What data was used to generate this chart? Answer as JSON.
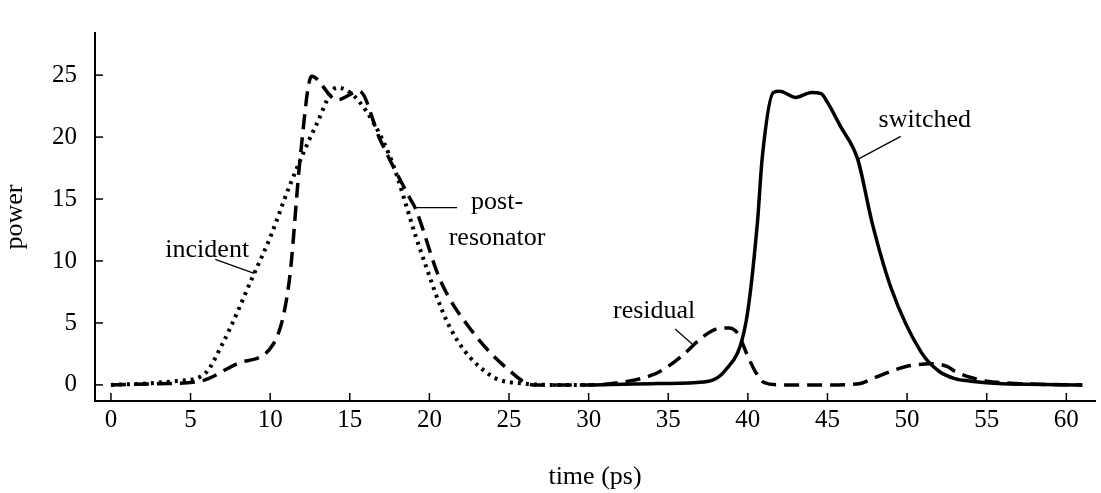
{
  "chart_data": {
    "type": "line",
    "xlabel": "time (ps)",
    "ylabel": "power",
    "xlim": [
      -1,
      61.8
    ],
    "ylim": [
      -1.3,
      28.4
    ],
    "xticks": [
      0,
      5,
      10,
      15,
      20,
      25,
      30,
      35,
      40,
      45,
      50,
      55,
      60
    ],
    "yticks": [
      0,
      5,
      10,
      15,
      20,
      25
    ],
    "legend": false,
    "series": [
      {
        "type": "line",
        "color": "#000000",
        "line_style": "dotted",
        "x": [
          0,
          2,
          4,
          5.8,
          7,
          9,
          10,
          11.2,
          12.9,
          14.2,
          15.5,
          17.5,
          19.4,
          21.3,
          23.8,
          26,
          28,
          30
        ],
        "values": [
          0,
          0.1,
          0.3,
          0.8,
          3.3,
          9,
          11.9,
          16,
          21,
          24,
          23,
          18.5,
          11,
          4.6,
          0.8,
          0.1,
          0,
          0
        ]
      },
      {
        "type": "line",
        "color": "#000000",
        "line_style": "dashed",
        "x": [
          0,
          3,
          5.6,
          8.1,
          10.2,
          11.2,
          11.9,
          12.6,
          14.2,
          15.6,
          16.9,
          18.8,
          19.1,
          20.7,
          22.7,
          24.9,
          26.5,
          28
        ],
        "values": [
          0,
          0.1,
          0.3,
          1.8,
          3.3,
          8.4,
          18.5,
          24.9,
          23,
          23.7,
          19.8,
          15,
          14.3,
          8.4,
          4.3,
          1.3,
          0,
          0
        ]
      },
      {
        "type": "line",
        "color": "#000000",
        "line_style": "dashed",
        "x": [
          28,
          30,
          32,
          34,
          35,
          36,
          37,
          38,
          38.8,
          39.4,
          39.9,
          40.5,
          41,
          42,
          45,
          47,
          48,
          49,
          50,
          51.5,
          52.5,
          53,
          54,
          55,
          57,
          61
        ],
        "values": [
          0,
          0,
          0.2,
          0.8,
          1.5,
          2.5,
          3.7,
          4.5,
          4.6,
          4.1,
          2.6,
          1,
          0.2,
          0,
          0,
          0.1,
          0.6,
          1.1,
          1.5,
          1.7,
          1.5,
          1.1,
          0.6,
          0.3,
          0.1,
          0
        ]
      },
      {
        "type": "line",
        "color": "#000000",
        "line_style": "solid",
        "x": [
          30,
          34,
          36.8,
          38.6,
          39.9,
          40.6,
          40.9,
          41.6,
          42,
          43,
          44,
          44.6,
          45,
          45.8,
          46.9,
          47.8,
          49,
          50.9,
          52,
          53,
          54,
          56,
          61
        ],
        "values": [
          0,
          0.1,
          0.2,
          1.2,
          5.2,
          13.1,
          18.3,
          23.6,
          23.7,
          23.2,
          23.6,
          23.5,
          22.8,
          20.9,
          18.2,
          13.1,
          7.8,
          2.6,
          1.1,
          0.5,
          0.3,
          0.1,
          0
        ]
      }
    ],
    "annotations": [
      {
        "text": "incident",
        "x": 9,
        "y": 9
      },
      {
        "text": "post-resonator",
        "x": 19.1,
        "y": 14.3
      },
      {
        "text": "residual",
        "x": 36.5,
        "y": 3.3
      },
      {
        "text": "switched",
        "x": 46.9,
        "y": 18.2
      }
    ]
  }
}
